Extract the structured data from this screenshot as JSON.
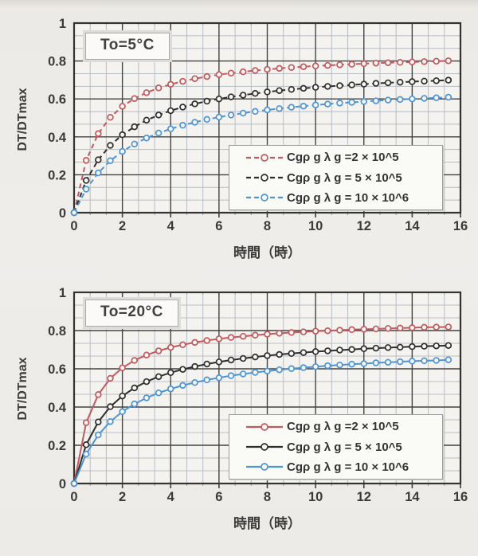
{
  "page": {
    "background": "#efedea"
  },
  "styles": {
    "plot_bg": "#f4f3f0",
    "grid_major": "#434343",
    "grid_minor": "#b7bcc5",
    "border": "#333333",
    "tick_color": "#3f3f3f",
    "text_color": "#3a3a3a",
    "marker_fill": "#f7f6f3"
  },
  "chart_data": [
    {
      "type": "line",
      "title": "To=5°C",
      "xlabel": "時間（時）",
      "ylabel": "DT/DTmax",
      "xlim": [
        0,
        16
      ],
      "ylim": [
        0,
        1
      ],
      "x_major": 2,
      "y_major": 0.2,
      "x_tick_labels": [
        "0",
        "2",
        "4",
        "6",
        "8",
        "10",
        "12",
        "14",
        "16"
      ],
      "y_tick_labels": [
        "0",
        "0.2",
        "0.4",
        "0.6",
        "0.8",
        "1"
      ],
      "grid": "major+minor",
      "legend_position": "lower right",
      "line_dash": "dashed",
      "x": [
        0,
        0.5,
        1,
        1.5,
        2,
        2.5,
        3,
        3.5,
        4,
        4.5,
        5,
        5.5,
        6,
        6.5,
        7,
        7.5,
        8,
        8.5,
        9,
        9.5,
        10,
        10.5,
        11,
        11.5,
        12,
        12.5,
        13,
        13.5,
        14,
        14.5,
        15,
        15.5
      ],
      "series": [
        {
          "label": "Cgρ g λ g =2 × 10^5",
          "color": "#c05a5e",
          "y": [
            0,
            0.276,
            0.417,
            0.503,
            0.561,
            0.602,
            0.633,
            0.658,
            0.677,
            0.693,
            0.707,
            0.718,
            0.728,
            0.736,
            0.743,
            0.75,
            0.756,
            0.761,
            0.766,
            0.77,
            0.774,
            0.777,
            0.78,
            0.783,
            0.786,
            0.789,
            0.791,
            0.793,
            0.795,
            0.797,
            0.799,
            0.801
          ]
        },
        {
          "label": "Cgρ g λ g = 5 × 10^5",
          "color": "#2e2e2e",
          "y": [
            0,
            0.17,
            0.279,
            0.355,
            0.411,
            0.453,
            0.488,
            0.515,
            0.538,
            0.557,
            0.574,
            0.588,
            0.6,
            0.611,
            0.62,
            0.629,
            0.637,
            0.644,
            0.65,
            0.656,
            0.661,
            0.666,
            0.67,
            0.674,
            0.678,
            0.682,
            0.685,
            0.688,
            0.691,
            0.694,
            0.696,
            0.699
          ]
        },
        {
          "label": "Cgρ g λ g = 10 × 10^6",
          "color": "#4f95d2",
          "y": [
            0,
            0.124,
            0.21,
            0.274,
            0.323,
            0.362,
            0.394,
            0.42,
            0.442,
            0.461,
            0.477,
            0.492,
            0.504,
            0.515,
            0.525,
            0.534,
            0.542,
            0.549,
            0.556,
            0.562,
            0.568,
            0.573,
            0.578,
            0.582,
            0.586,
            0.59,
            0.594,
            0.597,
            0.6,
            0.603,
            0.606,
            0.609
          ]
        }
      ]
    },
    {
      "type": "line",
      "title": "To=20°C",
      "xlabel": "時間（時）",
      "ylabel": "DT/DTmax",
      "xlim": [
        0,
        16
      ],
      "ylim": [
        0,
        1
      ],
      "x_major": 2,
      "y_major": 0.2,
      "x_tick_labels": [
        "0",
        "2",
        "4",
        "6",
        "8",
        "10",
        "12",
        "14",
        "16"
      ],
      "y_tick_labels": [
        "0",
        "0.2",
        "0.4",
        "0.6",
        "0.8",
        "1"
      ],
      "grid": "major+minor",
      "legend_position": "lower right",
      "line_dash": "solid",
      "x": [
        0,
        0.5,
        1,
        1.5,
        2,
        2.5,
        3,
        3.5,
        4,
        4.5,
        5,
        5.5,
        6,
        6.5,
        7,
        7.5,
        8,
        8.5,
        9,
        9.5,
        10,
        10.5,
        11,
        11.5,
        12,
        12.5,
        13,
        13.5,
        14,
        14.5,
        15,
        15.5
      ],
      "series": [
        {
          "label": "Cgρ g λ g =2 × 10^5",
          "color": "#c05a5e",
          "y": [
            0,
            0.318,
            0.465,
            0.55,
            0.605,
            0.644,
            0.672,
            0.694,
            0.712,
            0.726,
            0.738,
            0.748,
            0.757,
            0.764,
            0.77,
            0.776,
            0.781,
            0.786,
            0.79,
            0.793,
            0.797,
            0.799,
            0.802,
            0.805,
            0.807,
            0.809,
            0.811,
            0.813,
            0.815,
            0.817,
            0.818,
            0.819
          ]
        },
        {
          "label": "Cgρ g λ g = 5 × 10^5",
          "color": "#2e2e2e",
          "y": [
            0,
            0.203,
            0.322,
            0.402,
            0.458,
            0.5,
            0.533,
            0.559,
            0.58,
            0.597,
            0.612,
            0.625,
            0.636,
            0.646,
            0.654,
            0.662,
            0.669,
            0.675,
            0.68,
            0.685,
            0.69,
            0.694,
            0.698,
            0.701,
            0.705,
            0.708,
            0.711,
            0.713,
            0.716,
            0.718,
            0.72,
            0.722
          ]
        },
        {
          "label": "Cgρ g λ g = 10 × 10^6",
          "color": "#4f95d2",
          "y": [
            0,
            0.154,
            0.254,
            0.324,
            0.376,
            0.416,
            0.448,
            0.474,
            0.495,
            0.513,
            0.528,
            0.542,
            0.553,
            0.564,
            0.573,
            0.581,
            0.588,
            0.595,
            0.601,
            0.606,
            0.611,
            0.616,
            0.62,
            0.624,
            0.627,
            0.631,
            0.634,
            0.637,
            0.64,
            0.642,
            0.644,
            0.647
          ]
        }
      ]
    }
  ]
}
